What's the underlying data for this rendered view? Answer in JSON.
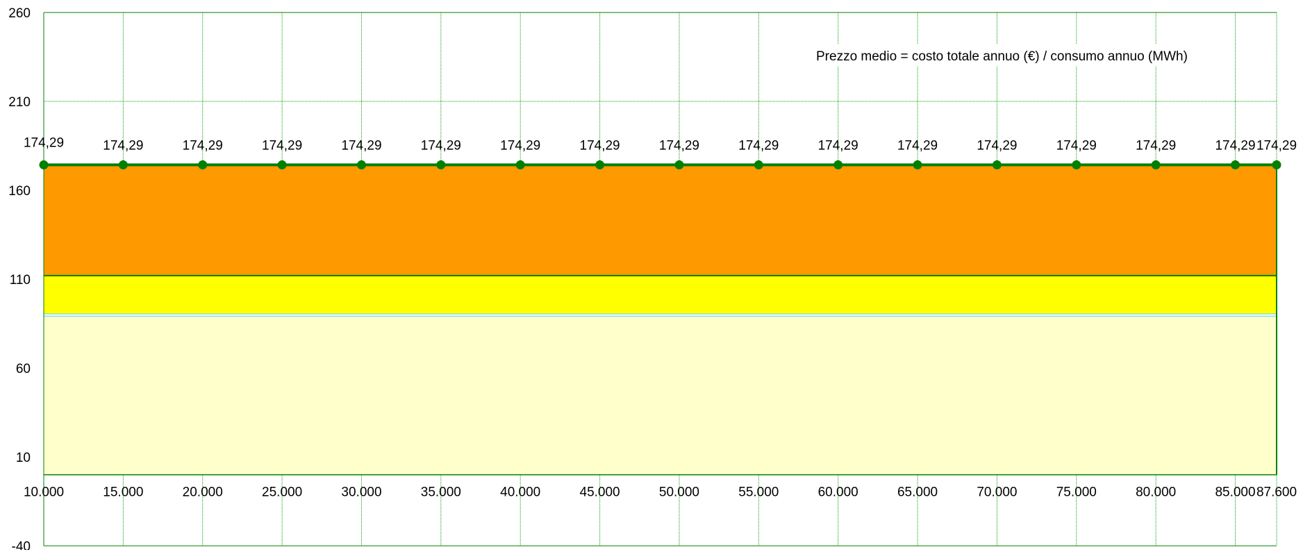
{
  "chart_data": {
    "type": "area",
    "title": "",
    "xlabel": "",
    "ylabel": "",
    "x": [
      10000,
      15000,
      20000,
      25000,
      30000,
      35000,
      40000,
      45000,
      50000,
      55000,
      60000,
      65000,
      70000,
      75000,
      80000,
      85000,
      87600
    ],
    "x_tick_labels": [
      "10.000",
      "15.000",
      "20.000",
      "25.000",
      "30.000",
      "35.000",
      "40.000",
      "45.000",
      "50.000",
      "55.000",
      "60.000",
      "65.000",
      "70.000",
      "75.000",
      "80.000",
      "85.000",
      "87.600"
    ],
    "y_ticks": [
      -40,
      10,
      60,
      110,
      160,
      210,
      260
    ],
    "ylim": [
      -40,
      260
    ],
    "grid": true,
    "stacked_areas": [
      {
        "y": 0,
        "top": 89,
        "color": "#FFFFCC"
      },
      {
        "y": 89,
        "top": 90.5,
        "color": "#CCFFFF"
      },
      {
        "y": 90.5,
        "top": 112,
        "color": "#FFFF00"
      },
      {
        "y": 112,
        "top": 174.29,
        "color": "#FF9900"
      }
    ],
    "series": [
      {
        "values": [
          174.29,
          174.29,
          174.29,
          174.29,
          174.29,
          174.29,
          174.29,
          174.29,
          174.29,
          174.29,
          174.29,
          174.29,
          174.29,
          174.29,
          174.29,
          174.29,
          174.29
        ],
        "labels": [
          "174,29",
          "174,29",
          "174,29",
          "174,29",
          "174,29",
          "174,29",
          "174,29",
          "174,29",
          "174,29",
          "174,29",
          "174,29",
          "174,29",
          "174,29",
          "174,29",
          "174,29",
          "174,29",
          "174,29"
        ],
        "color": "#008000"
      }
    ],
    "annotation": "Prezzo medio = costo totale annuo (€) / consumo annuo (MWh)",
    "colors": {
      "grid": "#00A000",
      "axis": "#008000"
    }
  }
}
